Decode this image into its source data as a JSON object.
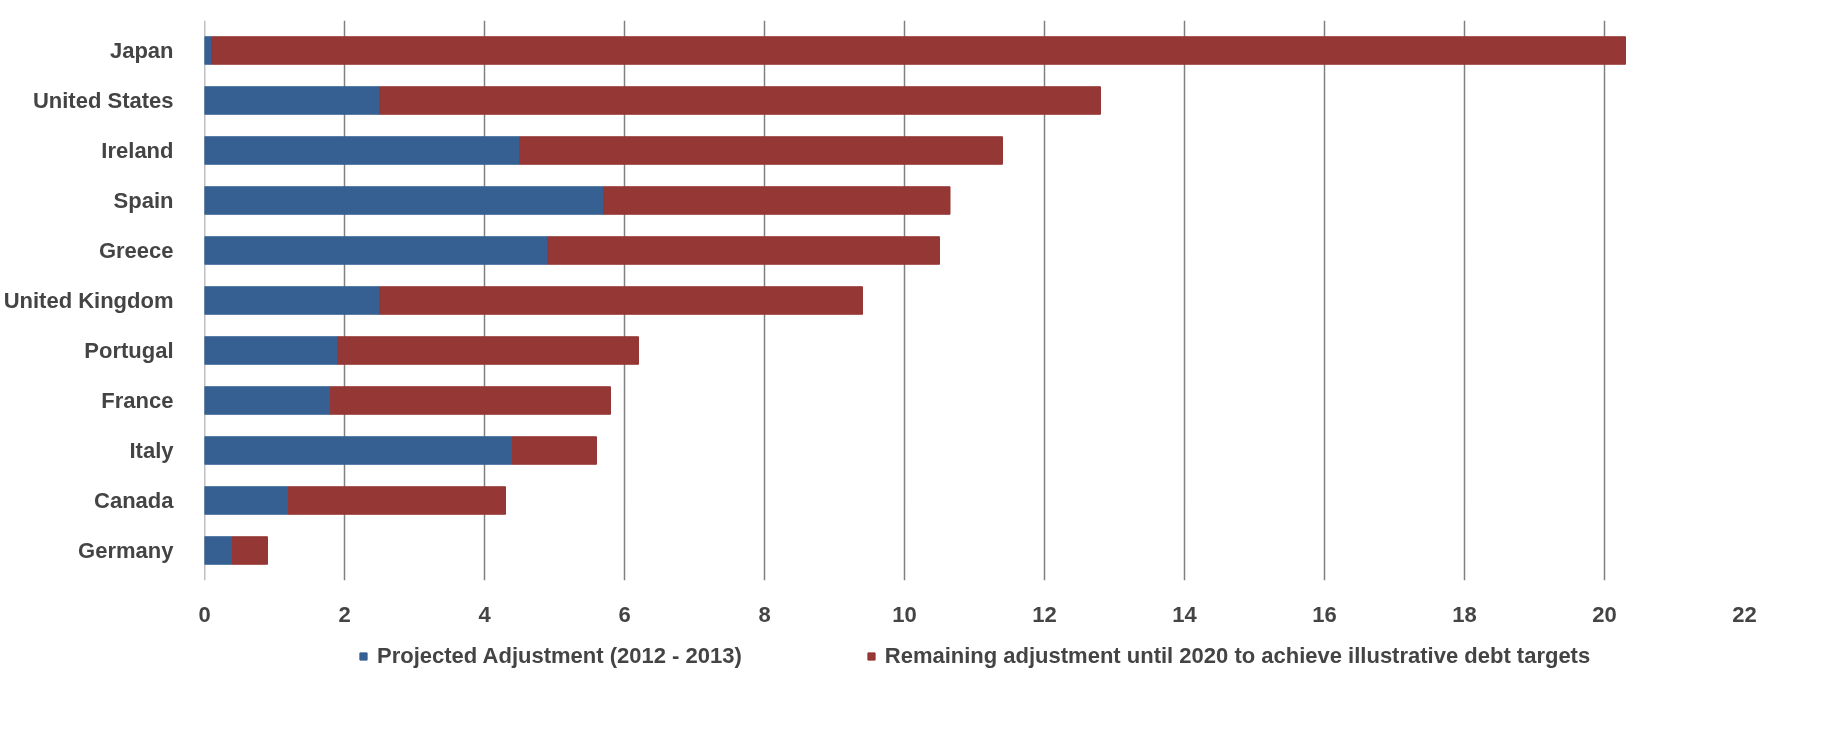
{
  "chart_data": {
    "type": "bar",
    "orientation": "horizontal",
    "stacked": true,
    "categories": [
      "Japan",
      "United States",
      "Ireland",
      "Spain",
      "Greece",
      "United Kingdom",
      "Portugal",
      "France",
      "Italy",
      "Canada",
      "Germany"
    ],
    "series": [
      {
        "name": "Projected Adjustment (2012 - 2013)",
        "color": "#366092",
        "values": [
          0.1,
          2.5,
          4.5,
          5.7,
          4.9,
          2.5,
          1.9,
          1.8,
          4.4,
          1.2,
          0.4
        ]
      },
      {
        "name": "Remaining adjustment until 2020 to achieve illustrative debt targets",
        "color": "#953735",
        "values": [
          20.2,
          10.3,
          6.9,
          4.95,
          5.6,
          6.9,
          4.3,
          4.0,
          1.2,
          3.1,
          0.5
        ]
      }
    ],
    "xlim": [
      0,
      22
    ],
    "xticks": [
      0,
      2,
      4,
      6,
      8,
      10,
      12,
      14,
      16,
      18,
      20,
      22
    ],
    "grid": "x",
    "legend": "bottom"
  }
}
